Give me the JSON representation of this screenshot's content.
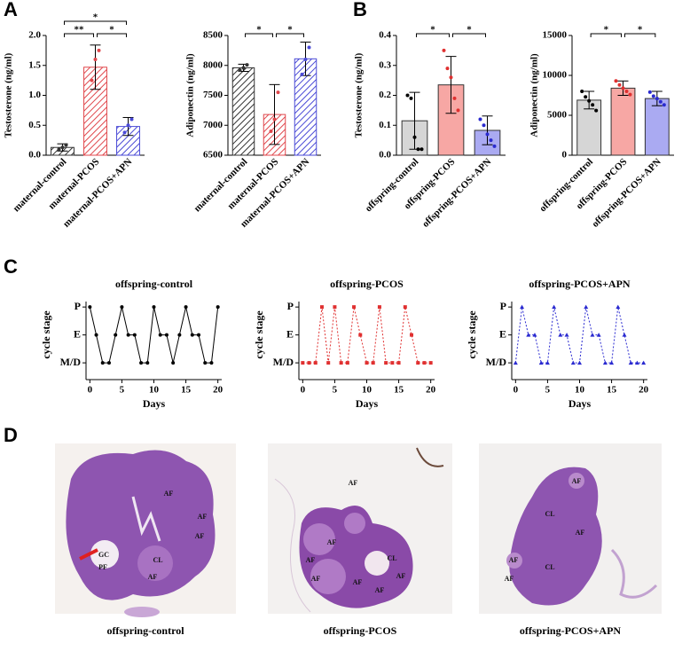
{
  "panel_labels": [
    "A",
    "B",
    "C",
    "D"
  ],
  "chart_data": [
    {
      "type": "bar",
      "ylabel": "Testosterone (ng/ml)",
      "categories": [
        "maternal-control",
        "maternal-PCOS",
        "maternal-PCOS+APN"
      ],
      "values": [
        0.13,
        1.47,
        0.48
      ],
      "errors": [
        0.06,
        0.37,
        0.15
      ],
      "points": [
        [
          0.1,
          0.13,
          0.17
        ],
        [
          1.25,
          1.6,
          1.75
        ],
        [
          0.38,
          0.5,
          0.6
        ]
      ],
      "colors": [
        "#333333",
        "#e0474c",
        "#4a4ad6"
      ],
      "hatch": true,
      "ylim": [
        0,
        2
      ],
      "yticks": [
        {
          "value": 0,
          "label": "0.0"
        },
        0.5,
        {
          "value": 1,
          "label": "1.0"
        },
        1.5,
        {
          "value": 2,
          "label": "2.0"
        }
      ],
      "significance": [
        {
          "groups": [
            0,
            1
          ],
          "label": "**"
        },
        {
          "groups": [
            1,
            2
          ],
          "label": "*"
        },
        {
          "groups": [
            0,
            2
          ],
          "label": "*"
        }
      ]
    },
    {
      "type": "bar",
      "ylabel": "Adiponectin (ng/ml)",
      "categories": [
        "maternal-control",
        "maternal-PCOS",
        "maternal-PCOS+APN"
      ],
      "values": [
        7960,
        7180,
        8110
      ],
      "errors": [
        60,
        500,
        280
      ],
      "points": [
        [
          7920,
          7960,
          8010
        ],
        [
          6900,
          7100,
          7550
        ],
        [
          7850,
          8100,
          8300
        ]
      ],
      "colors": [
        "#333333",
        "#e0474c",
        "#4a4ad6"
      ],
      "hatch": true,
      "ylim": [
        6500,
        8500
      ],
      "yticks": [
        6500,
        7000,
        7500,
        8000,
        8500
      ],
      "significance": [
        {
          "groups": [
            0,
            1
          ],
          "label": "*"
        },
        {
          "groups": [
            1,
            2
          ],
          "label": "*"
        }
      ]
    },
    {
      "type": "bar",
      "ylabel": "Testosterone (ng/ml)",
      "categories": [
        "offspring-control",
        "offspring-PCOS",
        "offspring-PCOS+APN"
      ],
      "values": [
        0.115,
        0.235,
        0.083
      ],
      "errors": [
        0.095,
        0.095,
        0.048
      ],
      "points": [
        [
          0.2,
          0.19,
          0.06,
          0.02,
          0.02
        ],
        [
          0.35,
          0.29,
          0.26,
          0.19,
          0.15
        ],
        [
          0.12,
          0.1,
          0.07,
          0.05,
          0.03
        ]
      ],
      "colors": [
        "#d6d6d6",
        "#f7a7a4",
        "#aaaaf2"
      ],
      "point_colors": [
        "#000000",
        "#e03030",
        "#2a2ad0"
      ],
      "hatch": false,
      "ylim": [
        0,
        0.4
      ],
      "yticks": [
        {
          "value": 0,
          "label": "0.0"
        },
        0.1,
        0.2,
        0.3,
        0.4
      ],
      "significance": [
        {
          "groups": [
            0,
            1
          ],
          "label": "*"
        },
        {
          "groups": [
            1,
            2
          ],
          "label": "*"
        }
      ]
    },
    {
      "type": "bar",
      "ylabel": "Adiponectin (ng/ml)",
      "categories": [
        "offspring-control",
        "offspring-PCOS",
        "offspring-PCOS+APN"
      ],
      "values": [
        6900,
        8400,
        7100
      ],
      "errors": [
        1100,
        900,
        900
      ],
      "points": [
        [
          8000,
          7300,
          6800,
          6300,
          5600
        ],
        [
          9300,
          8800,
          8400,
          8000,
          7600
        ],
        [
          7900,
          7400,
          7100,
          6700,
          6300
        ]
      ],
      "colors": [
        "#d6d6d6",
        "#f7a7a4",
        "#aaaaf2"
      ],
      "point_colors": [
        "#000000",
        "#e03030",
        "#2a2ad0"
      ],
      "hatch": false,
      "ylim": [
        0,
        15000
      ],
      "yticks": [
        0,
        5000,
        10000,
        15000
      ],
      "significance": [
        {
          "groups": [
            0,
            1
          ],
          "label": "*"
        },
        {
          "groups": [
            1,
            2
          ],
          "label": "*"
        }
      ]
    },
    {
      "type": "line",
      "title": "offspring-control",
      "xlabel": "Days",
      "ylabel": "cycle stage",
      "x": [
        0,
        1,
        2,
        3,
        4,
        5,
        6,
        7,
        8,
        9,
        10,
        11,
        12,
        13,
        14,
        15,
        16,
        17,
        18,
        19,
        20
      ],
      "values": [
        2,
        1,
        0,
        0,
        1,
        2,
        1,
        1,
        0,
        0,
        2,
        1,
        1,
        0,
        1,
        2,
        1,
        1,
        0,
        0,
        2
      ],
      "color": "#000000",
      "dashed": false,
      "marker": "circle",
      "xlim": [
        -0.6,
        20.6
      ],
      "xticks": [
        0,
        5,
        10,
        15,
        20
      ],
      "ylim": [
        -0.6,
        2.1
      ],
      "yticks": [
        {
          "value": 0,
          "label": "M/D"
        },
        {
          "value": 1,
          "label": "E"
        },
        {
          "value": 2,
          "label": "P"
        }
      ]
    },
    {
      "type": "line",
      "title": "offspring-PCOS",
      "xlabel": "Days",
      "ylabel": "cycle stage",
      "x": [
        0,
        1,
        2,
        3,
        4,
        5,
        6,
        7,
        8,
        9,
        10,
        11,
        12,
        13,
        14,
        15,
        16,
        17,
        18,
        19,
        20
      ],
      "values": [
        0,
        0,
        0,
        2,
        0,
        2,
        0,
        0,
        2,
        1,
        0,
        0,
        2,
        0,
        0,
        0,
        2,
        1,
        0,
        0,
        0
      ],
      "color": "#e03030",
      "dashed": true,
      "marker": "square",
      "xlim": [
        -0.6,
        20.6
      ],
      "xticks": [
        0,
        5,
        10,
        15,
        20
      ],
      "ylim": [
        -0.6,
        2.1
      ],
      "yticks": [
        {
          "value": 0,
          "label": "M/D"
        },
        {
          "value": 1,
          "label": "E"
        },
        {
          "value": 2,
          "label": "P"
        }
      ]
    },
    {
      "type": "line",
      "title": "offspring-PCOS+APN",
      "xlabel": "Days",
      "ylabel": "cycle stage",
      "x": [
        0,
        1,
        2,
        3,
        4,
        5,
        6,
        7,
        8,
        9,
        10,
        11,
        12,
        13,
        14,
        15,
        16,
        17,
        18,
        19,
        20
      ],
      "values": [
        0,
        2,
        1,
        1,
        0,
        0,
        2,
        1,
        1,
        0,
        0,
        2,
        1,
        1,
        0,
        0,
        2,
        1,
        0,
        0,
        0
      ],
      "color": "#2a2ad0",
      "dashed": true,
      "marker": "triangle",
      "xlim": [
        -0.6,
        20.6
      ],
      "xticks": [
        0,
        5,
        10,
        15,
        20
      ],
      "ylim": [
        -0.6,
        2.1
      ],
      "yticks": [
        {
          "value": 0,
          "label": "M/D"
        },
        {
          "value": 1,
          "label": "E"
        },
        {
          "value": 2,
          "label": "P"
        }
      ]
    }
  ],
  "histology": {
    "captions": [
      "offspring-control",
      "offspring-PCOS",
      "offspring-PCOS+APN"
    ],
    "annotations": [
      [
        "AF",
        "AF",
        "AF",
        "GC",
        "PF",
        "CL",
        "AF"
      ],
      [
        "AF",
        "AF",
        "AF",
        "AF",
        "CL",
        "AF",
        "AF",
        "AF"
      ],
      [
        "AF",
        "CL",
        "AF",
        "AF",
        "CL",
        "AF"
      ]
    ]
  }
}
